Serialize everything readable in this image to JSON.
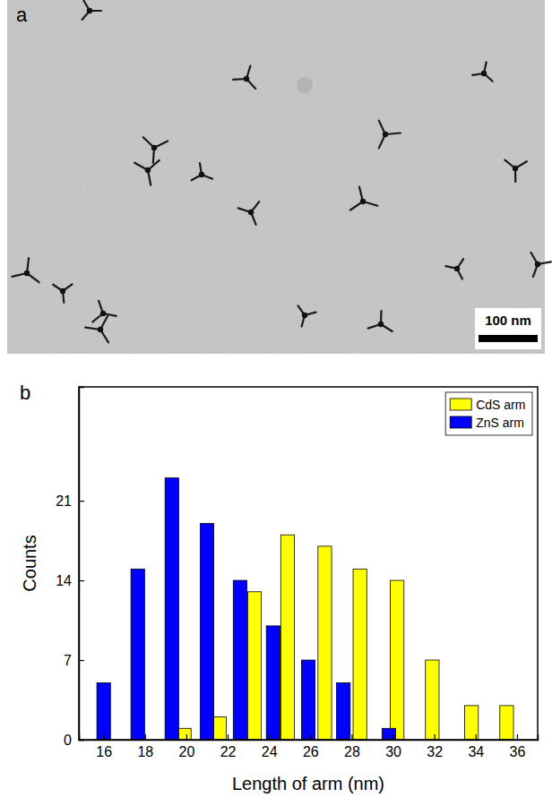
{
  "chart_data": [
    {
      "type": "image",
      "panel": "a",
      "scale_bar": "100 nm"
    },
    {
      "type": "bar",
      "panel": "b",
      "x_label": "Length of arm (nm)",
      "y_label": "Counts",
      "series": [
        {
          "name": "CdS arm",
          "color": "#ffff00",
          "x": [
            19.9,
            21.6,
            23.3,
            24.9,
            26.7,
            28.4,
            30.2,
            31.9,
            33.8,
            35.5
          ],
          "values": [
            1,
            2,
            13,
            18,
            17,
            15,
            14,
            7,
            3,
            3
          ]
        },
        {
          "name": "ZnS arm",
          "color": "#0000ff",
          "x": [
            16.0,
            17.65,
            19.3,
            21.0,
            22.6,
            24.2,
            25.9,
            27.6,
            29.8
          ],
          "values": [
            5,
            15,
            23,
            19,
            14,
            10,
            7,
            5,
            1
          ]
        }
      ],
      "xlim": [
        14.8,
        37
      ],
      "xticks": [
        16,
        18,
        20,
        22,
        24,
        26,
        28,
        30,
        32,
        34,
        36
      ],
      "ylim": [
        0,
        31
      ],
      "yticks": [
        0,
        7,
        14,
        21
      ],
      "legend": "upper right",
      "grid": false
    }
  ]
}
